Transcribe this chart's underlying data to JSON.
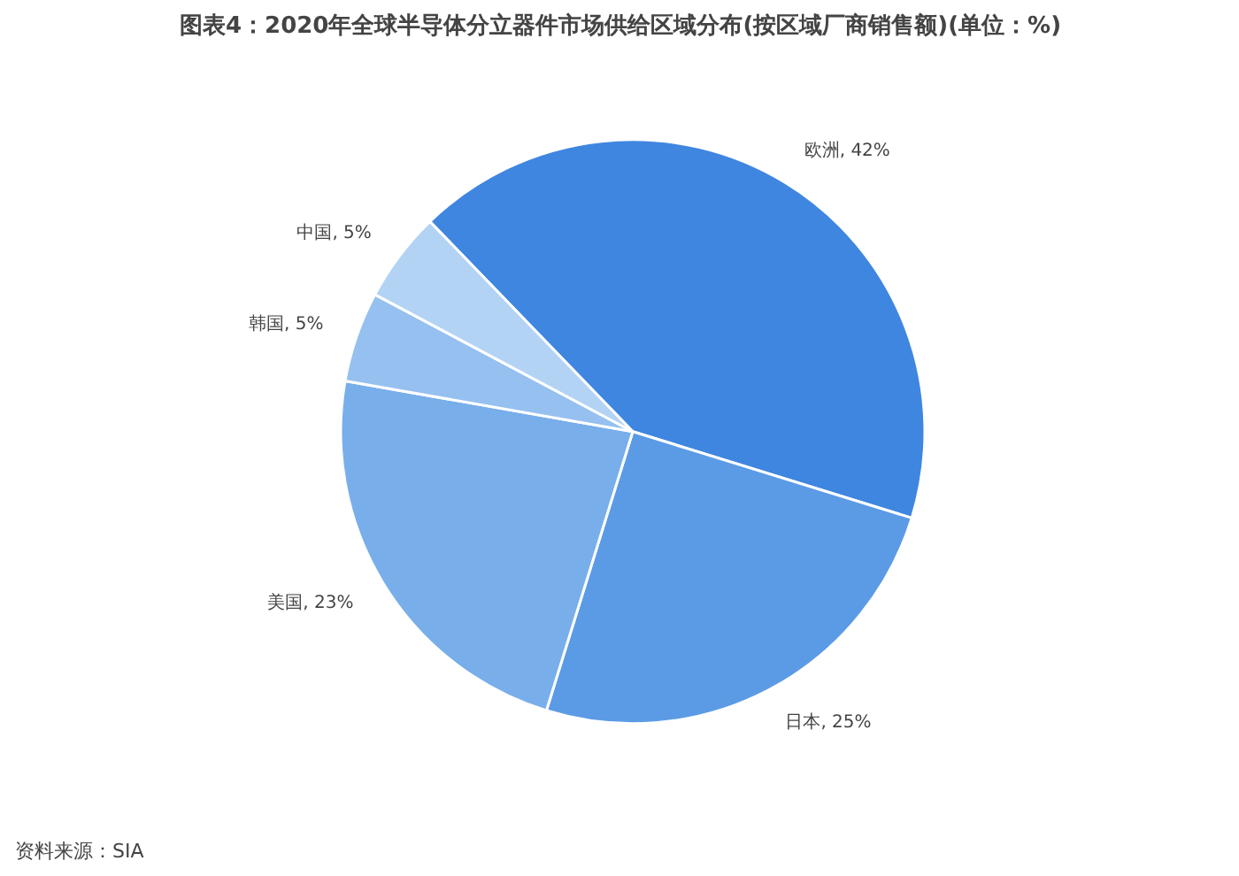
{
  "chart_data": {
    "type": "pie",
    "title": "图表4：2020年全球半导体分立器件市场供给区域分布(按区域厂商销售额)(单位：%)",
    "categories": [
      "欧洲",
      "日本",
      "美国",
      "韩国",
      "中国"
    ],
    "values": [
      42,
      25,
      23,
      5,
      5
    ],
    "value_labels": [
      "42%",
      "25%",
      "23%",
      "5%",
      "5%"
    ],
    "colors": [
      "#3f86e0",
      "#5b9be6",
      "#78aeea",
      "#95c0f0",
      "#b3d3f5"
    ],
    "annotations": [
      "资料来源：SIA"
    ]
  }
}
